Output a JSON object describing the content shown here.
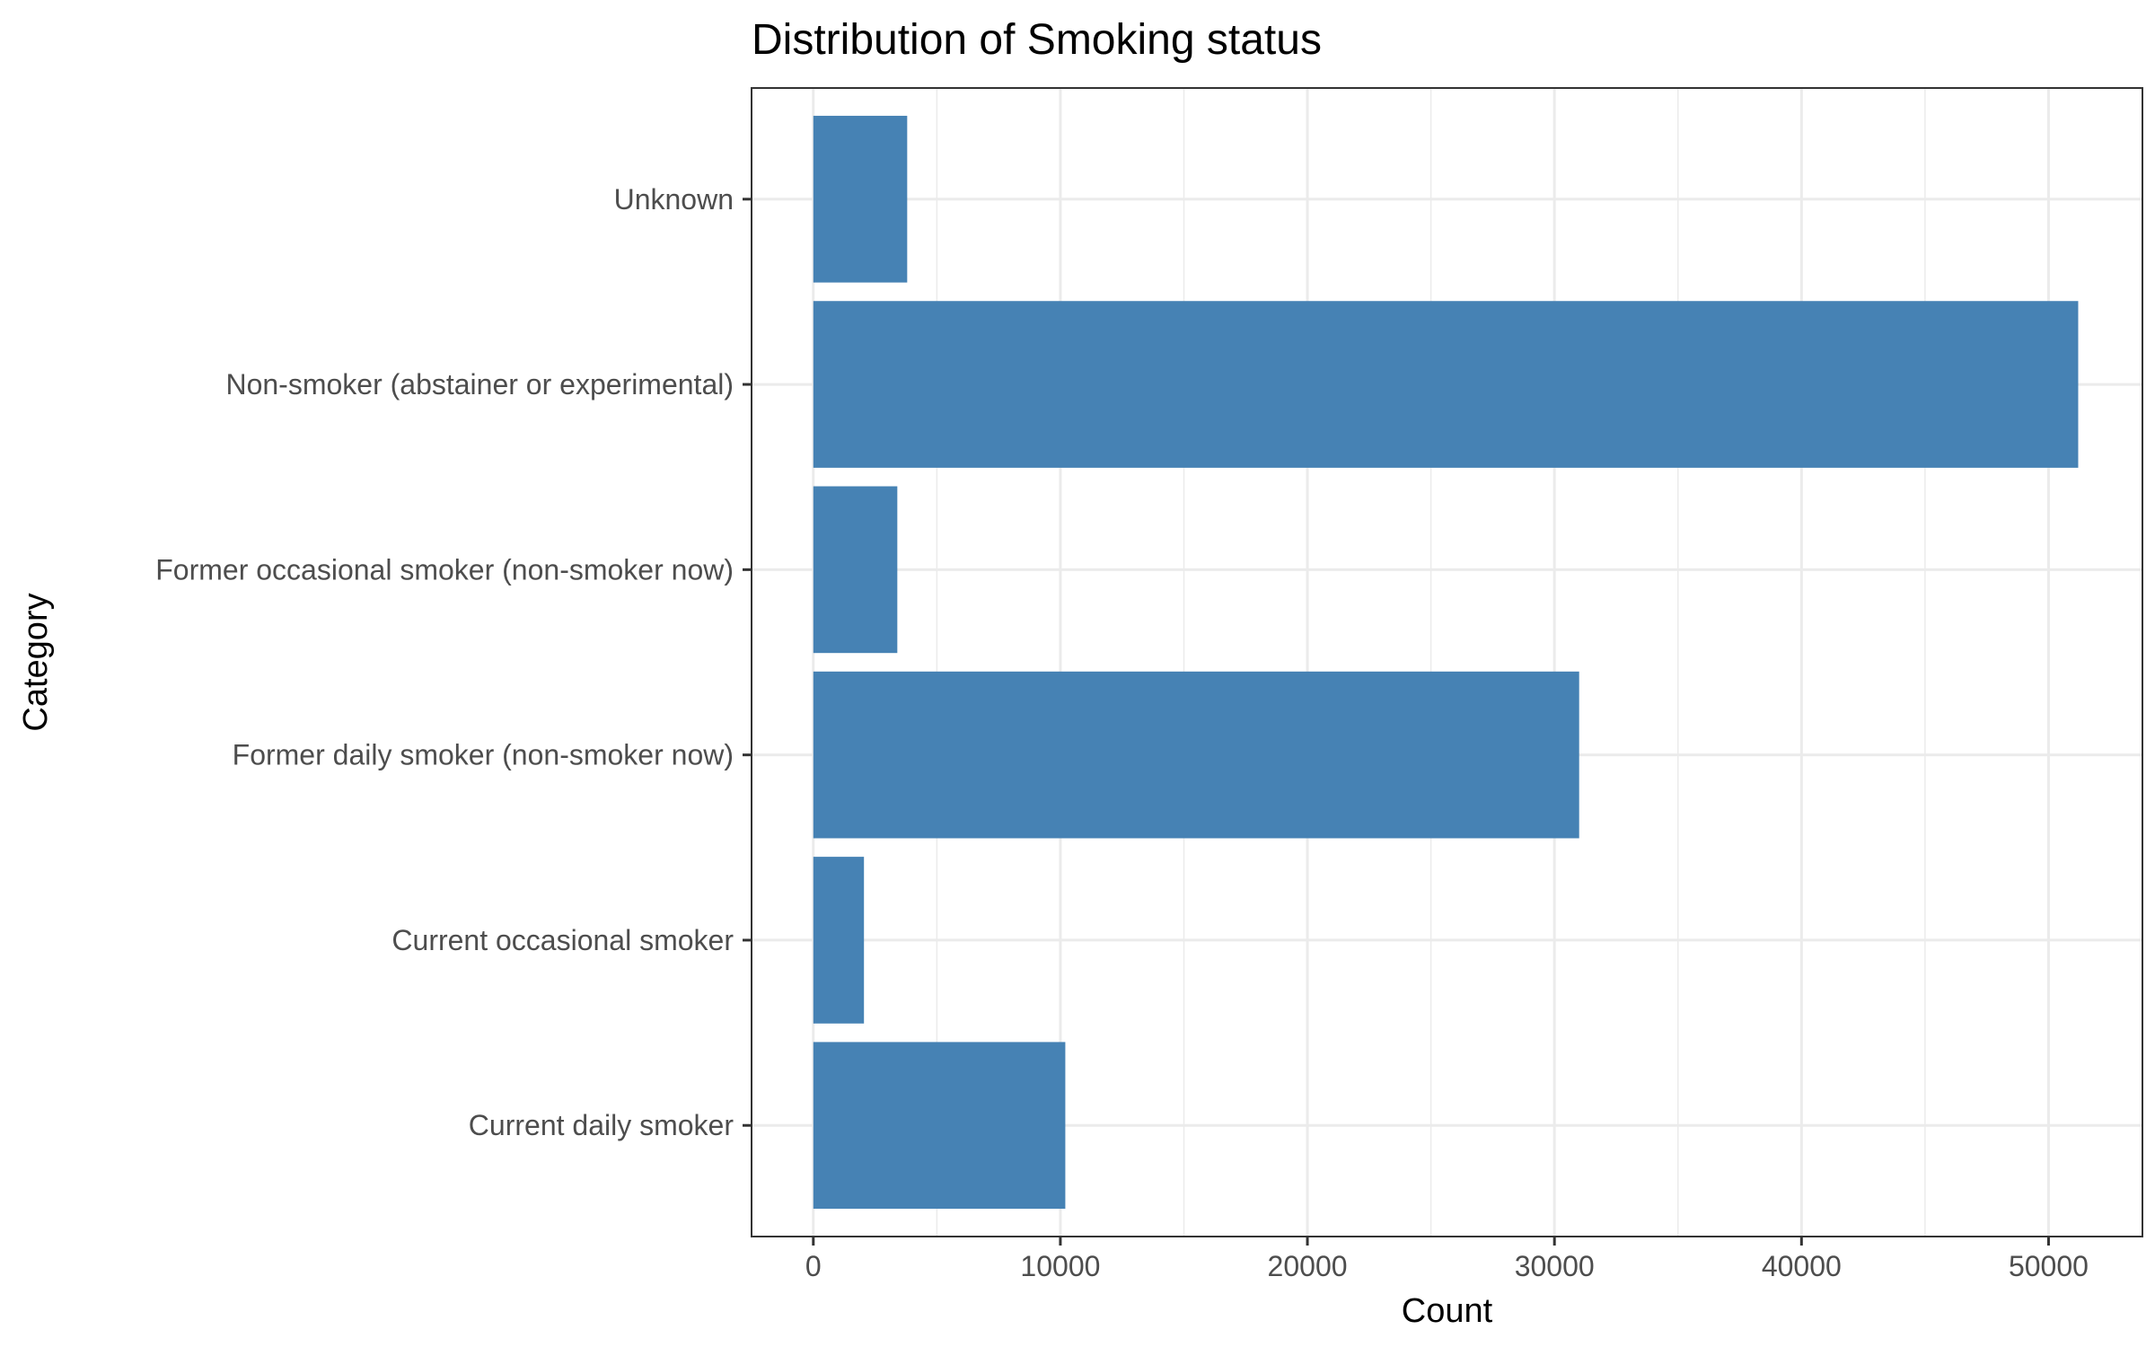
{
  "chart_data": {
    "type": "bar",
    "orientation": "horizontal",
    "title": "Distribution of Smoking status",
    "xlabel": "Count",
    "ylabel": "Category",
    "categories": [
      "Current daily smoker",
      "Current occasional smoker",
      "Former daily smoker (non-smoker now)",
      "Former occasional smoker (non-smoker now)",
      "Non-smoker (abstainer or experimental)",
      "Unknown"
    ],
    "values": [
      10200,
      2050,
      31000,
      3400,
      51200,
      3800
    ],
    "xlim": [
      -2500,
      53800
    ],
    "xticks": [
      0,
      10000,
      20000,
      30000,
      40000,
      50000
    ],
    "grid": true,
    "bar_color": "#4682b4"
  }
}
